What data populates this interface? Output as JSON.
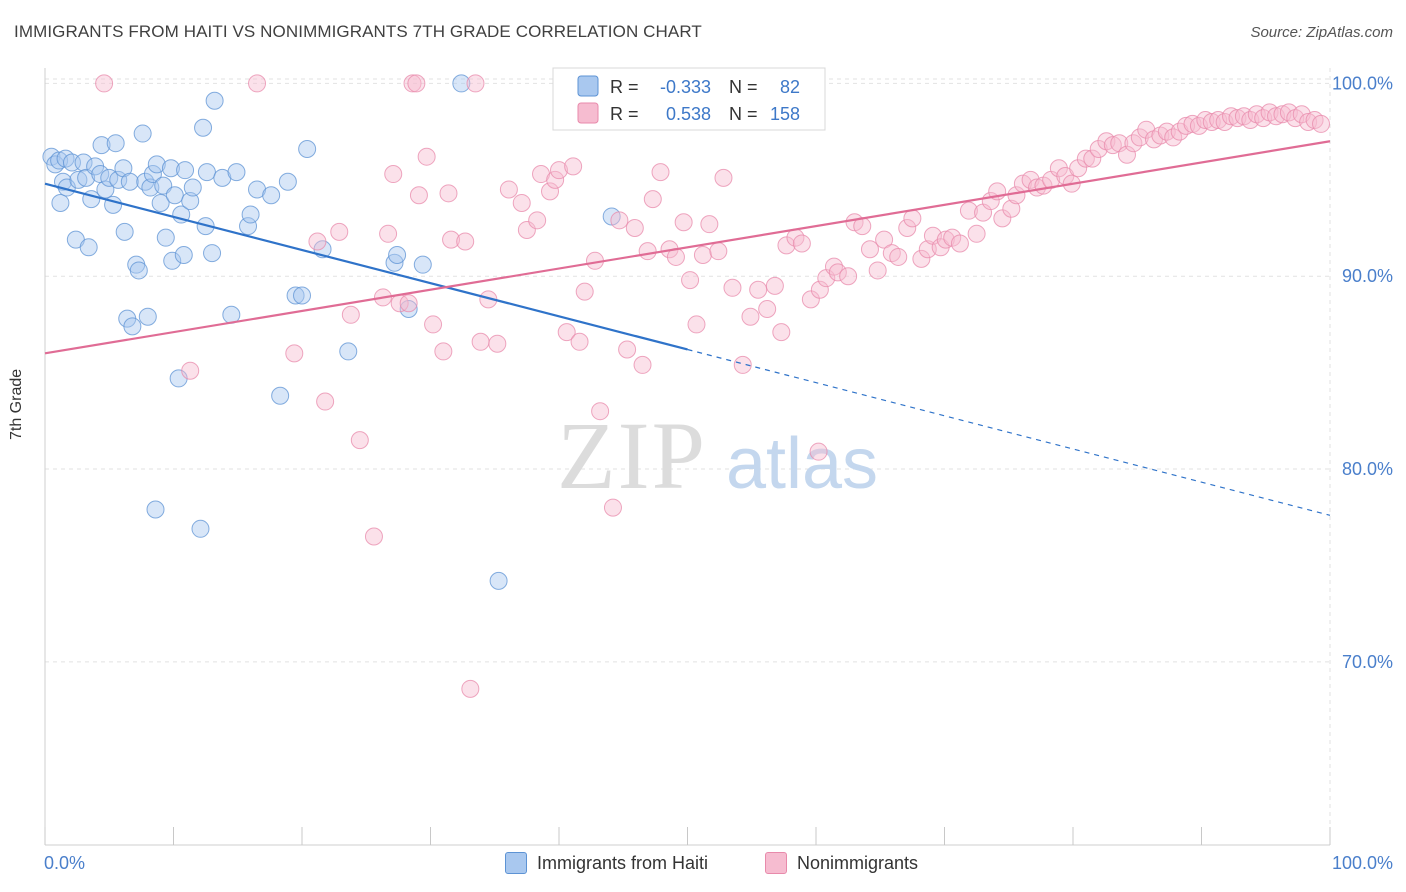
{
  "title": "IMMIGRANTS FROM HAITI VS NONIMMIGRANTS 7TH GRADE CORRELATION CHART",
  "source": "Source: ZipAtlas.com",
  "watermark": {
    "zip": "ZIP",
    "atlas": "atlas"
  },
  "colors": {
    "blue_fill": "#a9c8ef",
    "blue_stroke": "#5d93d4",
    "blue_line": "#2f73c9",
    "pink_fill": "#f6bcd0",
    "pink_stroke": "#e88aab",
    "pink_line": "#e06c95",
    "axis_text": "#4a7fcb",
    "grid": "#e2e2e2"
  },
  "legend": {
    "r_label": "R =",
    "n_label": "N =",
    "rows": [
      {
        "series": "blue",
        "r": "-0.333",
        "n": "82"
      },
      {
        "series": "pink",
        "r": "0.538",
        "n": "158"
      }
    ]
  },
  "bottom_legend": [
    {
      "series": "blue",
      "label": "Immigrants from Haiti"
    },
    {
      "series": "pink",
      "label": "Nonimmigrants"
    }
  ],
  "chart_data": {
    "type": "scatter",
    "title": "IMMIGRANTS FROM HAITI VS NONIMMIGRANTS 7TH GRADE CORRELATION CHART",
    "xlabel": "",
    "ylabel": "7th Grade",
    "xlim": [
      0,
      100
    ],
    "ylim": [
      60.5,
      100.8
    ],
    "x_tick_labels": [
      "0.0%",
      "100.0%"
    ],
    "y_ticks": [
      70,
      80,
      90,
      100
    ],
    "y_tick_labels": [
      "70.0%",
      "80.0%",
      "90.0%",
      "100.0%"
    ],
    "grid": true,
    "legend_position": "top-center",
    "series": [
      {
        "name": "Immigrants from Haiti",
        "color": "blue",
        "r": -0.333,
        "n": 82,
        "trend": {
          "x0": 0,
          "y0": 94.8,
          "x1": 50,
          "y1": 86.2,
          "dashed_to_x": 100,
          "dashed_to_y": 77.6
        },
        "points": [
          [
            0.5,
            96.2
          ],
          [
            0.8,
            95.8
          ],
          [
            1.1,
            96.0
          ],
          [
            1.4,
            94.9
          ],
          [
            1.2,
            93.8
          ],
          [
            1.7,
            94.6
          ],
          [
            1.6,
            96.1
          ],
          [
            2.1,
            95.9
          ],
          [
            2.4,
            91.9
          ],
          [
            2.6,
            95.0
          ],
          [
            3.0,
            95.9
          ],
          [
            3.2,
            95.1
          ],
          [
            3.4,
            91.5
          ],
          [
            3.6,
            94.0
          ],
          [
            3.9,
            95.7
          ],
          [
            4.3,
            95.3
          ],
          [
            4.4,
            96.8
          ],
          [
            4.7,
            94.5
          ],
          [
            5.0,
            95.1
          ],
          [
            5.3,
            93.7
          ],
          [
            5.5,
            96.9
          ],
          [
            5.7,
            95.0
          ],
          [
            6.1,
            95.6
          ],
          [
            6.2,
            92.3
          ],
          [
            6.4,
            87.8
          ],
          [
            6.6,
            94.9
          ],
          [
            6.8,
            87.4
          ],
          [
            7.1,
            90.6
          ],
          [
            7.3,
            90.3
          ],
          [
            7.6,
            97.4
          ],
          [
            7.8,
            94.9
          ],
          [
            8.0,
            87.9
          ],
          [
            8.2,
            94.6
          ],
          [
            8.4,
            95.3
          ],
          [
            8.6,
            77.9
          ],
          [
            8.7,
            95.8
          ],
          [
            9.0,
            93.8
          ],
          [
            9.2,
            94.7
          ],
          [
            9.4,
            92.0
          ],
          [
            9.8,
            95.6
          ],
          [
            9.9,
            90.8
          ],
          [
            10.1,
            94.2
          ],
          [
            10.4,
            84.7
          ],
          [
            10.6,
            93.2
          ],
          [
            10.8,
            91.1
          ],
          [
            10.9,
            95.5
          ],
          [
            11.3,
            93.9
          ],
          [
            11.5,
            94.6
          ],
          [
            12.1,
            76.9
          ],
          [
            12.3,
            97.7
          ],
          [
            12.5,
            92.6
          ],
          [
            12.6,
            95.4
          ],
          [
            13.0,
            91.2
          ],
          [
            13.2,
            99.1
          ],
          [
            13.8,
            95.1
          ],
          [
            14.5,
            88.0
          ],
          [
            14.9,
            95.4
          ],
          [
            15.8,
            92.6
          ],
          [
            16.0,
            93.2
          ],
          [
            16.5,
            94.5
          ],
          [
            17.6,
            94.2
          ],
          [
            18.3,
            83.8
          ],
          [
            18.9,
            94.9
          ],
          [
            19.5,
            89.0
          ],
          [
            20.0,
            89.0
          ],
          [
            20.4,
            96.6
          ],
          [
            21.6,
            91.4
          ],
          [
            23.6,
            86.1
          ],
          [
            27.2,
            90.7
          ],
          [
            27.4,
            91.1
          ],
          [
            28.3,
            88.3
          ],
          [
            29.4,
            90.6
          ],
          [
            32.4,
            100.0
          ],
          [
            35.3,
            74.2
          ],
          [
            44.1,
            93.1
          ]
        ]
      },
      {
        "name": "Nonimmigrants",
        "color": "pink",
        "r": 0.538,
        "n": 158,
        "trend": {
          "x0": 0,
          "y0": 86.0,
          "x1": 100,
          "y1": 97.0
        },
        "points": [
          [
            4.6,
            100.0
          ],
          [
            11.3,
            85.1
          ],
          [
            16.5,
            100.0
          ],
          [
            19.4,
            86.0
          ],
          [
            21.2,
            91.8
          ],
          [
            21.8,
            83.5
          ],
          [
            22.9,
            92.3
          ],
          [
            23.8,
            88.0
          ],
          [
            24.5,
            81.5
          ],
          [
            25.6,
            76.5
          ],
          [
            26.3,
            88.9
          ],
          [
            26.7,
            92.2
          ],
          [
            27.1,
            95.3
          ],
          [
            27.6,
            88.6
          ],
          [
            28.3,
            88.6
          ],
          [
            28.6,
            100.0
          ],
          [
            28.9,
            100.0
          ],
          [
            29.1,
            94.2
          ],
          [
            29.7,
            96.2
          ],
          [
            30.2,
            87.5
          ],
          [
            31.0,
            86.1
          ],
          [
            31.4,
            94.3
          ],
          [
            31.6,
            91.9
          ],
          [
            32.7,
            91.8
          ],
          [
            33.1,
            68.6
          ],
          [
            33.5,
            100.0
          ],
          [
            33.9,
            86.6
          ],
          [
            34.5,
            88.8
          ],
          [
            35.2,
            86.5
          ],
          [
            36.1,
            94.5
          ],
          [
            37.1,
            93.8
          ],
          [
            37.5,
            92.4
          ],
          [
            38.3,
            92.9
          ],
          [
            38.6,
            95.3
          ],
          [
            39.3,
            94.4
          ],
          [
            39.7,
            95.0
          ],
          [
            40.0,
            95.5
          ],
          [
            40.6,
            87.1
          ],
          [
            41.1,
            95.7
          ],
          [
            41.6,
            86.6
          ],
          [
            42.0,
            89.2
          ],
          [
            42.8,
            90.8
          ],
          [
            43.2,
            83.0
          ],
          [
            44.2,
            78.0
          ],
          [
            44.7,
            92.9
          ],
          [
            45.3,
            86.2
          ],
          [
            45.9,
            92.5
          ],
          [
            46.5,
            85.4
          ],
          [
            46.9,
            91.3
          ],
          [
            47.3,
            94.0
          ],
          [
            47.9,
            95.4
          ],
          [
            48.6,
            91.4
          ],
          [
            49.1,
            91.0
          ],
          [
            49.7,
            92.8
          ],
          [
            50.2,
            89.8
          ],
          [
            50.7,
            87.5
          ],
          [
            51.2,
            91.1
          ],
          [
            51.7,
            92.7
          ],
          [
            52.4,
            91.3
          ],
          [
            52.8,
            95.1
          ],
          [
            53.5,
            89.4
          ],
          [
            54.3,
            85.4
          ],
          [
            54.9,
            87.9
          ],
          [
            55.5,
            89.3
          ],
          [
            56.2,
            88.3
          ],
          [
            56.8,
            89.5
          ],
          [
            57.3,
            87.1
          ],
          [
            57.7,
            91.6
          ],
          [
            58.4,
            92.0
          ],
          [
            58.9,
            91.7
          ],
          [
            59.6,
            88.8
          ],
          [
            60.3,
            89.3
          ],
          [
            60.8,
            89.9
          ],
          [
            61.4,
            90.5
          ],
          [
            61.7,
            90.2
          ],
          [
            62.5,
            90.0
          ],
          [
            63.0,
            92.8
          ],
          [
            63.6,
            92.6
          ],
          [
            64.2,
            91.4
          ],
          [
            64.8,
            90.3
          ],
          [
            65.3,
            91.9
          ],
          [
            65.9,
            91.2
          ],
          [
            66.4,
            91.0
          ],
          [
            67.1,
            92.5
          ],
          [
            67.5,
            93.0
          ],
          [
            68.2,
            90.9
          ],
          [
            68.7,
            91.4
          ],
          [
            69.1,
            92.1
          ],
          [
            69.7,
            91.5
          ],
          [
            70.1,
            91.9
          ],
          [
            70.6,
            92.0
          ],
          [
            71.2,
            91.7
          ],
          [
            71.9,
            93.4
          ],
          [
            72.5,
            92.2
          ],
          [
            73.0,
            93.3
          ],
          [
            73.6,
            93.9
          ],
          [
            74.1,
            94.4
          ],
          [
            74.5,
            93.0
          ],
          [
            75.2,
            93.5
          ],
          [
            75.6,
            94.2
          ],
          [
            76.1,
            94.8
          ],
          [
            76.7,
            95.0
          ],
          [
            77.2,
            94.6
          ],
          [
            77.7,
            94.7
          ],
          [
            78.3,
            95.0
          ],
          [
            78.9,
            95.6
          ],
          [
            79.4,
            95.2
          ],
          [
            79.9,
            94.8
          ],
          [
            80.4,
            95.6
          ],
          [
            81.0,
            96.1
          ],
          [
            81.5,
            96.1
          ],
          [
            82.0,
            96.6
          ],
          [
            82.6,
            97.0
          ],
          [
            83.1,
            96.8
          ],
          [
            83.6,
            96.9
          ],
          [
            84.2,
            96.3
          ],
          [
            84.7,
            96.9
          ],
          [
            85.2,
            97.2
          ],
          [
            85.7,
            97.6
          ],
          [
            86.3,
            97.1
          ],
          [
            86.8,
            97.3
          ],
          [
            87.3,
            97.5
          ],
          [
            87.8,
            97.2
          ],
          [
            88.3,
            97.5
          ],
          [
            88.8,
            97.8
          ],
          [
            89.3,
            97.9
          ],
          [
            89.8,
            97.8
          ],
          [
            90.3,
            98.1
          ],
          [
            90.8,
            98.0
          ],
          [
            91.3,
            98.1
          ],
          [
            91.8,
            98.0
          ],
          [
            92.3,
            98.3
          ],
          [
            92.8,
            98.2
          ],
          [
            93.3,
            98.3
          ],
          [
            93.8,
            98.1
          ],
          [
            94.3,
            98.4
          ],
          [
            94.8,
            98.2
          ],
          [
            95.3,
            98.5
          ],
          [
            95.8,
            98.3
          ],
          [
            96.3,
            98.4
          ],
          [
            96.8,
            98.5
          ],
          [
            97.3,
            98.2
          ],
          [
            97.8,
            98.4
          ],
          [
            98.3,
            98.0
          ],
          [
            98.8,
            98.1
          ],
          [
            99.3,
            97.9
          ],
          [
            60.2,
            80.9
          ]
        ]
      }
    ]
  }
}
